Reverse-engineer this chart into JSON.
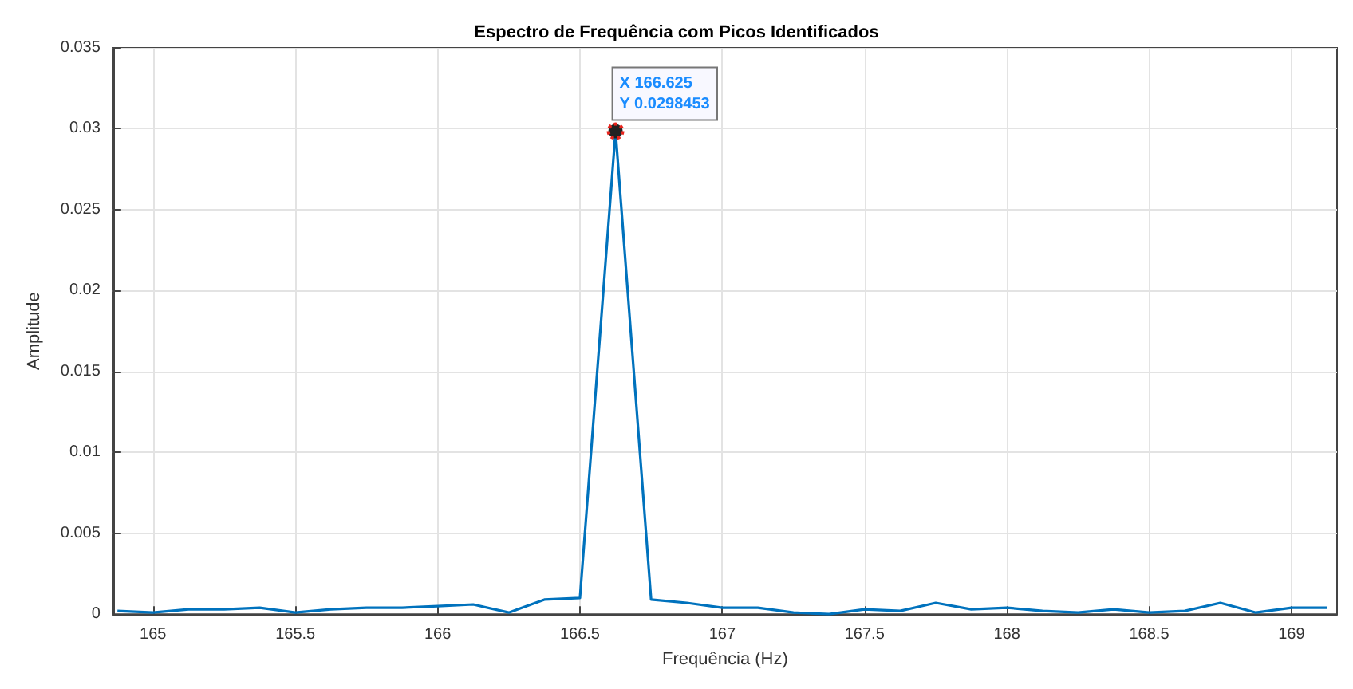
{
  "chart_data": {
    "type": "line",
    "title": "Espectro de Frequência com Picos Identificados",
    "xlabel": "Frequência (Hz)",
    "ylabel": "Amplitude",
    "x": [
      164.875,
      165,
      165.125,
      165.25,
      165.375,
      165.5,
      165.625,
      165.75,
      165.875,
      166,
      166.125,
      166.25,
      166.375,
      166.5,
      166.625,
      166.75,
      166.875,
      167,
      167.125,
      167.25,
      167.375,
      167.5,
      167.625,
      167.75,
      167.875,
      168,
      168.125,
      168.25,
      168.375,
      168.5,
      168.625,
      168.75,
      168.875,
      169,
      169.125
    ],
    "series": [
      {
        "color": "#0072bd",
        "values": [
          0.0002,
          0.0001,
          0.0003,
          0.0003,
          0.0004,
          0.0001,
          0.0003,
          0.0004,
          0.0004,
          0.0005,
          0.0006,
          0.0001,
          0.0009,
          0.001,
          0.0298453,
          0.0009,
          0.0007,
          0.0004,
          0.0004,
          0.0001,
          0,
          0.0003,
          0.0002,
          0.0007,
          0.0003,
          0.0004,
          0.0002,
          0.0001,
          0.0003,
          0.0001,
          0.0002,
          0.0007,
          0.0001,
          0.0004,
          0.0004
        ]
      }
    ],
    "xlim": [
      164.86,
      169.16
    ],
    "ylim": [
      0,
      0.035
    ],
    "xticks": [
      165,
      165.5,
      166,
      166.5,
      167,
      167.5,
      168,
      168.5,
      169
    ],
    "yticks": [
      0,
      0.005,
      0.01,
      0.015,
      0.02,
      0.025,
      0.03,
      0.035
    ],
    "grid": true,
    "marker": "none",
    "line_style": "solid",
    "annotations": [
      {
        "text": "X 166.625\nY 0.0298453",
        "x": 166.625,
        "y": 0.0298453
      }
    ]
  }
}
